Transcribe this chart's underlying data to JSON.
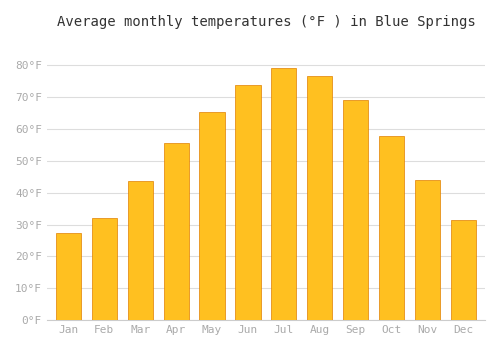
{
  "title": "Average monthly temperatures (°F ) in Blue Springs",
  "months": [
    "Jan",
    "Feb",
    "Mar",
    "Apr",
    "May",
    "Jun",
    "Jul",
    "Aug",
    "Sep",
    "Oct",
    "Nov",
    "Dec"
  ],
  "values": [
    27.5,
    32.2,
    43.7,
    55.7,
    65.3,
    73.7,
    79.1,
    76.6,
    69.0,
    57.9,
    43.9,
    31.5
  ],
  "bar_color": "#FFA500",
  "bar_edge_color": "#CC7700",
  "background_color": "#FFFFFF",
  "grid_color": "#DDDDDD",
  "tick_label_color": "#AAAAAA",
  "title_color": "#333333",
  "ylim": [
    0,
    88
  ],
  "yticks": [
    0,
    10,
    20,
    30,
    40,
    50,
    60,
    70,
    80
  ],
  "ytick_labels": [
    "0°F",
    "10°F",
    "20°F",
    "30°F",
    "40°F",
    "50°F",
    "60°F",
    "70°F",
    "80°F"
  ]
}
